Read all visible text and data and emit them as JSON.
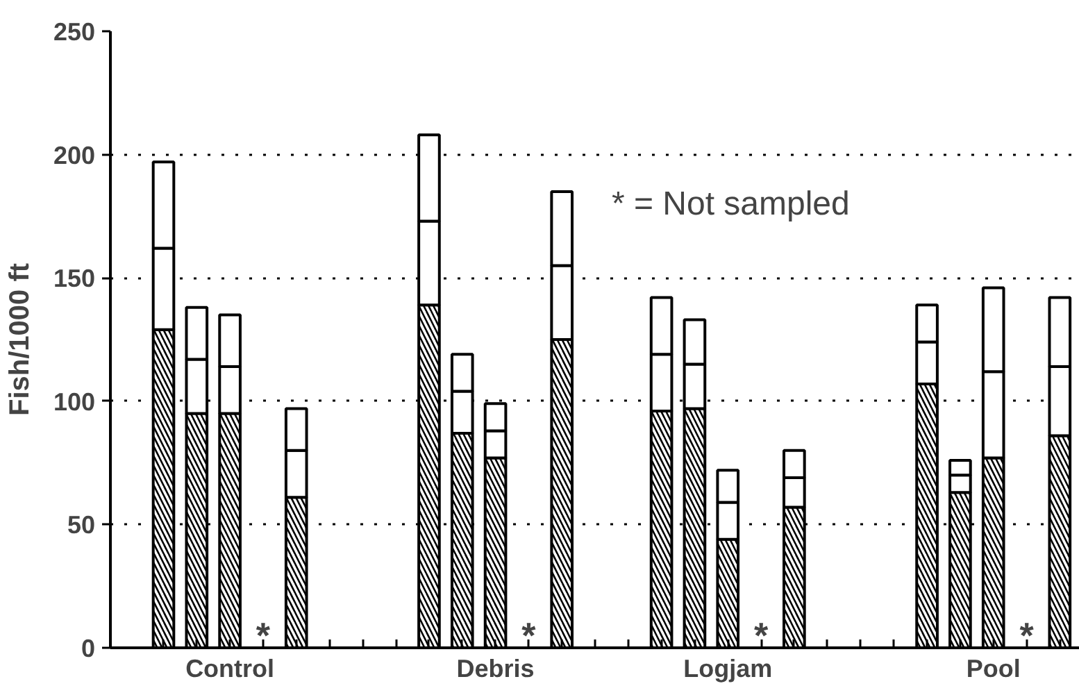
{
  "chart_data": {
    "type": "bar",
    "stacked": true,
    "ylabel": "Fish/1000 ft",
    "categories": [
      null,
      null,
      "Control",
      null,
      null,
      null,
      null,
      null,
      null,
      null,
      "Debris",
      null,
      null,
      null,
      null,
      null,
      null,
      "Logjam",
      null,
      null,
      null,
      null,
      null,
      null,
      null,
      "Pool",
      null,
      null
    ],
    "series": [
      {
        "color": "#000000",
        "values": [
          129,
          95,
          95,
          null,
          61,
          null,
          null,
          null,
          139,
          87,
          77,
          null,
          125,
          null,
          null,
          96,
          97,
          44,
          null,
          57,
          null,
          null,
          null,
          107,
          63,
          77,
          null,
          86
        ],
        "value_labels": [
          null,
          null,
          null,
          "*",
          null,
          null,
          null,
          null,
          null,
          null,
          null,
          "*",
          null,
          null,
          null,
          null,
          null,
          null,
          "*",
          null,
          null,
          null,
          null,
          null,
          null,
          null,
          "*",
          null
        ]
      },
      {
        "color": "#ffffff",
        "values": [
          33,
          22,
          19,
          null,
          19,
          null,
          null,
          null,
          34,
          17,
          11,
          null,
          30,
          null,
          null,
          23,
          18,
          15,
          null,
          12,
          null,
          null,
          null,
          17,
          7,
          35,
          null,
          28
        ]
      },
      {
        "color": "#ffffff",
        "values": [
          35,
          21,
          21,
          null,
          17,
          null,
          null,
          null,
          35,
          15,
          11,
          null,
          30,
          null,
          null,
          23,
          18,
          13,
          null,
          11,
          null,
          null,
          null,
          15,
          6,
          34,
          null,
          28
        ]
      }
    ],
    "ylim": [
      0,
      250
    ],
    "yticks": [
      0,
      50,
      100,
      150,
      200,
      250
    ],
    "grid": "y",
    "annotations": [
      "* = Not sampled"
    ]
  }
}
